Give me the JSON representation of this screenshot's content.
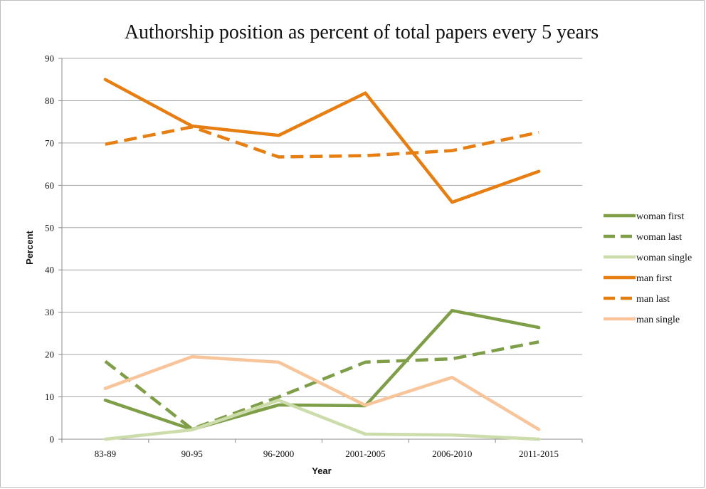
{
  "chart_data": {
    "type": "line",
    "title": "Authorship position as percent of total papers every 5 years",
    "xlabel": "Year",
    "ylabel": "Percent",
    "ylim": [
      0,
      90
    ],
    "yticks": [
      0,
      10,
      20,
      30,
      40,
      50,
      60,
      70,
      80,
      90
    ],
    "grid": true,
    "legend": "right",
    "categories": [
      "83-89",
      "90-95",
      "96-2000",
      "2001-2005",
      "2006-2010",
      "2011-2015"
    ],
    "series": [
      {
        "name": "woman first",
        "color": "#7e9e48",
        "dashed": false,
        "values": [
          9.2,
          2.3,
          8.1,
          7.9,
          30.4,
          26.4
        ]
      },
      {
        "name": "woman last",
        "color": "#7e9e48",
        "dashed": true,
        "values": [
          18.4,
          2.4,
          10.0,
          18.2,
          19.0,
          23.0
        ]
      },
      {
        "name": "woman single",
        "color": "#cddcab",
        "dashed": false,
        "values": [
          0,
          2.2,
          9.2,
          1.2,
          1.0,
          0
        ]
      },
      {
        "name": "man first",
        "color": "#e67e12",
        "dashed": false,
        "values": [
          85.0,
          74.0,
          71.8,
          81.8,
          56.0,
          63.3
        ]
      },
      {
        "name": "man last",
        "color": "#e67e12",
        "dashed": true,
        "values": [
          69.7,
          73.8,
          66.7,
          67.0,
          68.2,
          72.5
        ]
      },
      {
        "name": "man single",
        "color": "#f8c59b",
        "dashed": false,
        "values": [
          12.0,
          19.5,
          18.2,
          8.0,
          14.6,
          2.3
        ]
      }
    ]
  }
}
